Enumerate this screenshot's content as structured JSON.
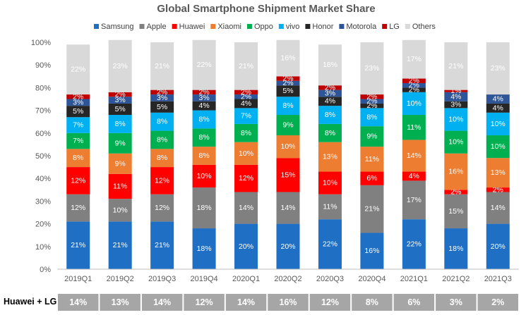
{
  "chart_data": {
    "type": "bar",
    "stacked": true,
    "title": "Global Smartphone Shipment Market Share",
    "categories": [
      "2019Q1",
      "2019Q2",
      "2019Q3",
      "2019Q4",
      "2020Q1",
      "2020Q2",
      "2020Q3",
      "2020Q4",
      "2021Q1",
      "2021Q2",
      "2021Q3"
    ],
    "ylim": [
      0,
      100
    ],
    "yticks": [
      "0%",
      "10%",
      "20%",
      "30%",
      "40%",
      "50%",
      "60%",
      "70%",
      "80%",
      "90%",
      "100%"
    ],
    "legend_position": "top",
    "grid": false,
    "series": [
      {
        "name": "Samsung",
        "color": "#1f6fc5",
        "label_color": "#ffffff",
        "values": [
          21,
          21,
          21,
          18,
          20,
          20,
          22,
          16,
          22,
          18,
          20
        ]
      },
      {
        "name": "Apple",
        "color": "#808080",
        "label_color": "#ffffff",
        "values": [
          12,
          10,
          12,
          18,
          14,
          14,
          11,
          21,
          17,
          15,
          14
        ]
      },
      {
        "name": "Huawei",
        "color": "#ff0000",
        "label_color": "#ffffff",
        "values": [
          12,
          11,
          12,
          10,
          12,
          15,
          10,
          6,
          4,
          2,
          2
        ]
      },
      {
        "name": "Xiaomi",
        "color": "#ed7d31",
        "label_color": "#ffffff",
        "values": [
          8,
          9,
          8,
          8,
          10,
          10,
          13,
          11,
          14,
          16,
          13
        ]
      },
      {
        "name": "Oppo",
        "color": "#00b050",
        "label_color": "#ffffff",
        "values": [
          7,
          9,
          8,
          8,
          8,
          9,
          8,
          9,
          11,
          10,
          10
        ]
      },
      {
        "name": "vivo",
        "color": "#00b0f0",
        "label_color": "#ffffff",
        "values": [
          7,
          8,
          8,
          8,
          7,
          8,
          8,
          8,
          10,
          10,
          10
        ]
      },
      {
        "name": "Honor",
        "color": "#262626",
        "label_color": "#ffffff",
        "values": [
          5,
          5,
          5,
          4,
          4,
          5,
          4,
          2,
          2,
          3,
          4
        ]
      },
      {
        "name": "Motorola",
        "color": "#2e5597",
        "label_color": "#ffffff",
        "values": [
          3,
          3,
          3,
          3,
          2,
          2,
          3,
          2,
          2,
          4,
          4
        ]
      },
      {
        "name": "LG",
        "color": "#c00000",
        "label_color": "#ffffff",
        "values": [
          2,
          2,
          2,
          2,
          2,
          2,
          2,
          2,
          2,
          1,
          0
        ]
      },
      {
        "name": "Others",
        "color": "#d9d9d9",
        "label_color": "#ffffff",
        "values": [
          22,
          23,
          21,
          22,
          21,
          16,
          18,
          23,
          17,
          21,
          23
        ]
      }
    ],
    "bottom_row": {
      "title": "Huawei + LG",
      "values": [
        "14%",
        "13%",
        "14%",
        "12%",
        "14%",
        "16%",
        "12%",
        "8%",
        "6%",
        "3%",
        "2%"
      ]
    }
  }
}
